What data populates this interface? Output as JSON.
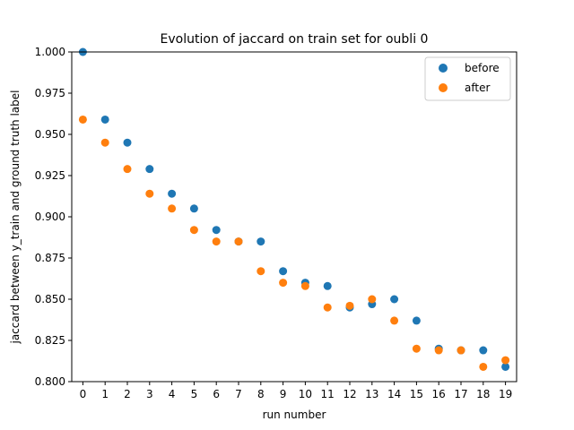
{
  "chart_data": {
    "type": "scatter",
    "title": "Evolution of jaccard on train set for oubli 0",
    "xlabel": "run number",
    "ylabel": "jaccard between y_train and ground truth label",
    "x": [
      0,
      1,
      2,
      3,
      4,
      5,
      6,
      7,
      8,
      9,
      10,
      11,
      12,
      13,
      14,
      15,
      16,
      17,
      18,
      19
    ],
    "xticks": [
      "0",
      "1",
      "2",
      "3",
      "4",
      "5",
      "6",
      "7",
      "8",
      "9",
      "10",
      "11",
      "12",
      "13",
      "14",
      "15",
      "16",
      "17",
      "18",
      "19"
    ],
    "yticks": [
      "0.800",
      "0.825",
      "0.850",
      "0.875",
      "0.900",
      "0.925",
      "0.950",
      "0.975",
      "1.000"
    ],
    "ylim": [
      0.8,
      1.0
    ],
    "xlim": [
      -0.5,
      19.5
    ],
    "grid": false,
    "legend_position": "top-right",
    "series": [
      {
        "name": "before",
        "color": "#1f77b4",
        "values": [
          1.0,
          0.959,
          0.945,
          0.929,
          0.914,
          0.905,
          0.892,
          0.885,
          0.885,
          0.867,
          0.86,
          0.858,
          0.845,
          0.847,
          0.85,
          0.837,
          0.82,
          0.819,
          0.819,
          0.809
        ]
      },
      {
        "name": "after",
        "color": "#ff7f0e",
        "values": [
          0.959,
          0.945,
          0.929,
          0.914,
          0.905,
          0.892,
          0.885,
          0.885,
          0.867,
          0.86,
          0.858,
          0.845,
          0.846,
          0.85,
          0.837,
          0.82,
          0.819,
          0.819,
          0.809,
          0.813
        ]
      }
    ]
  }
}
